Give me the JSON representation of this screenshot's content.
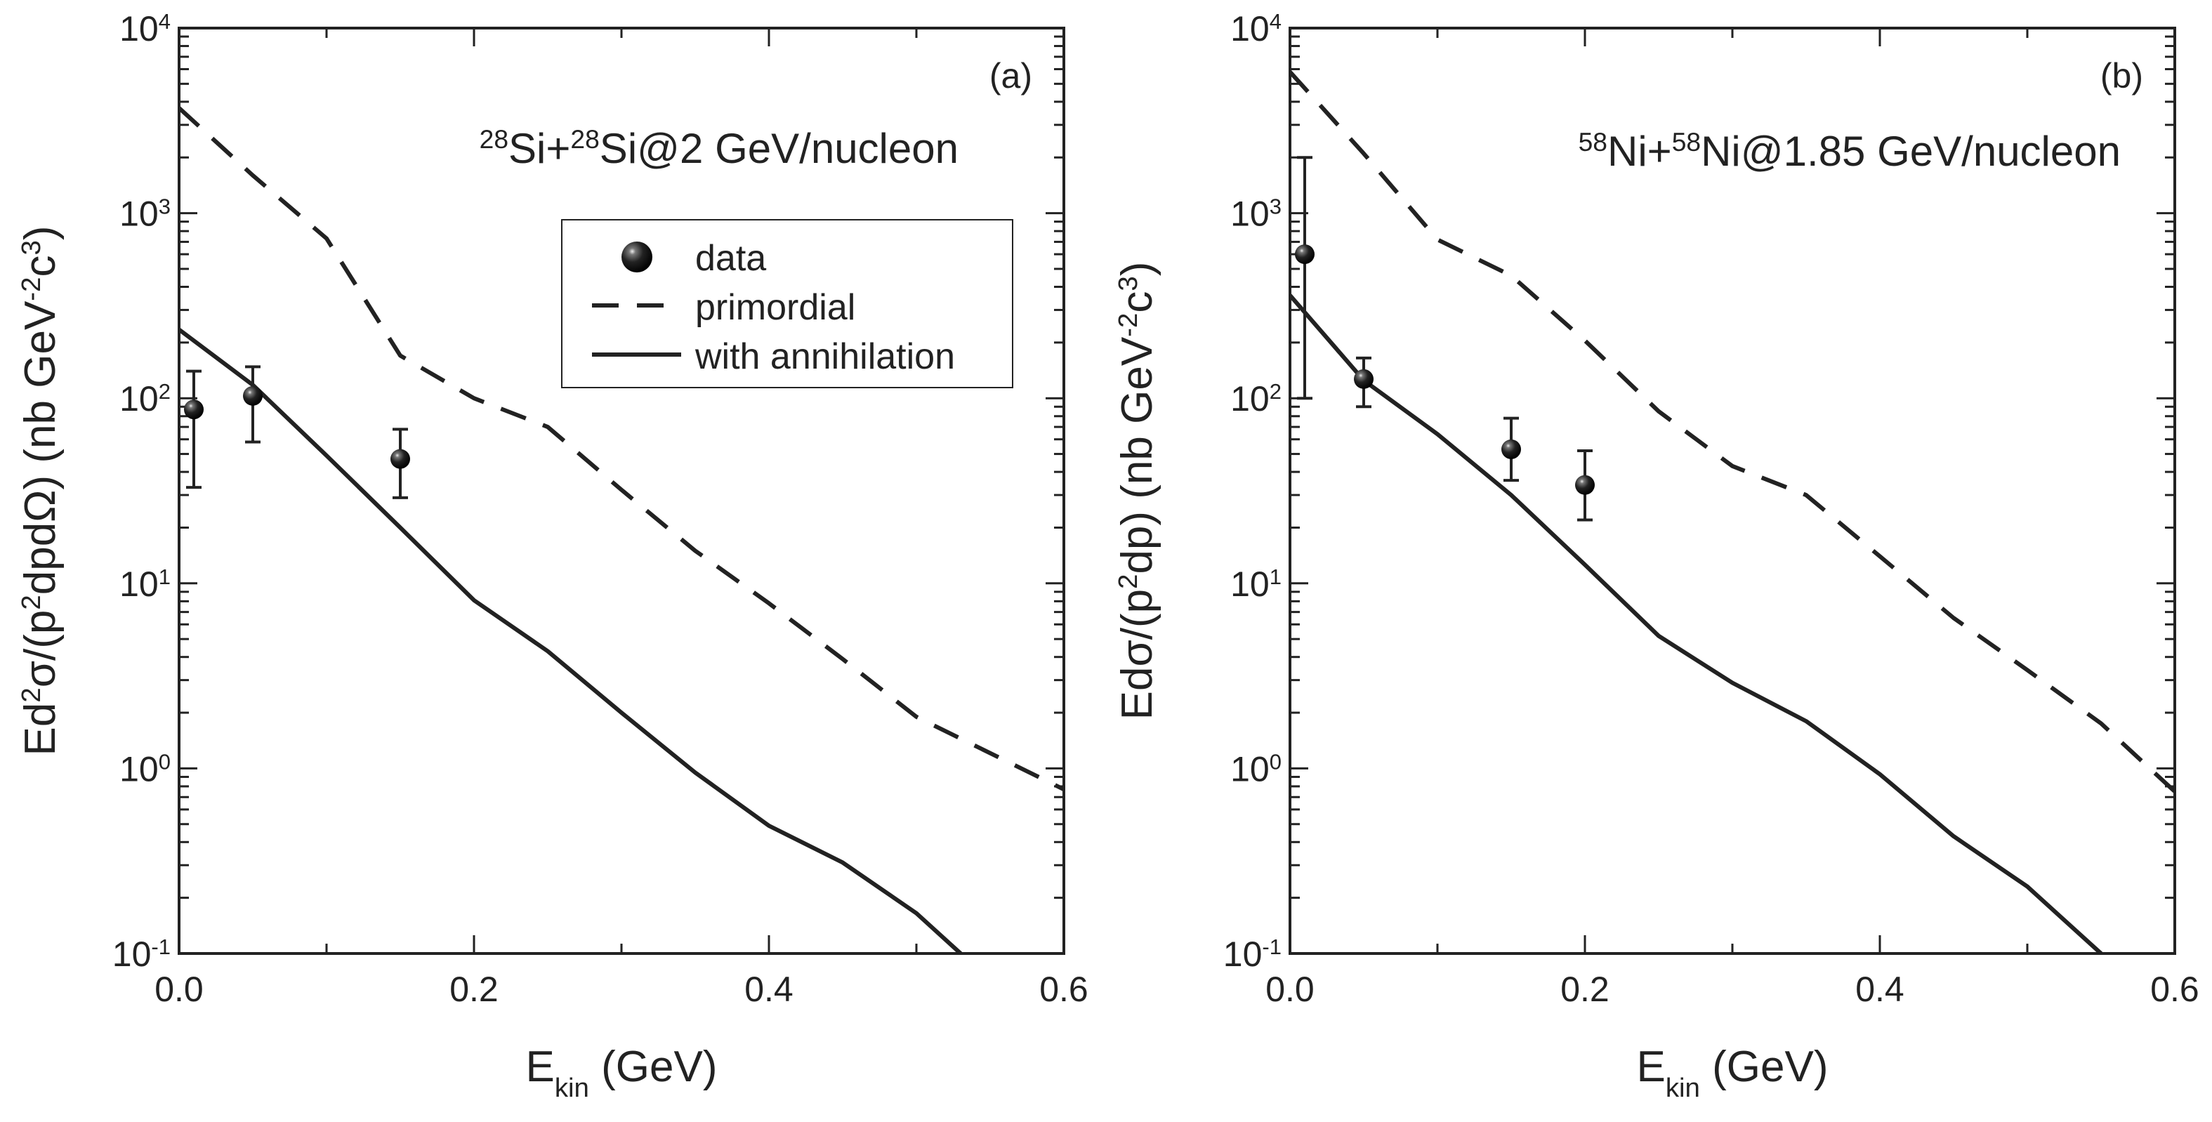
{
  "colors": {
    "line": "#222222",
    "marker": "#1a1a1a",
    "background": "#ffffff"
  },
  "chart_data": [
    {
      "type": "line",
      "panel_label": "(a)",
      "title_parts": [
        [
          "28",
          "sup"
        ],
        [
          "Si+",
          ""
        ],
        [
          "28",
          "sup"
        ],
        [
          "Si@2 GeV/nucleon",
          ""
        ]
      ],
      "xlabel_parts": [
        [
          "E",
          ""
        ],
        [
          "kin",
          "sub"
        ],
        [
          " (GeV)",
          ""
        ]
      ],
      "ylabel_parts": [
        [
          "Ed",
          ""
        ],
        [
          "2",
          "sup"
        ],
        [
          "σ/(p",
          ""
        ],
        [
          "2",
          "sup"
        ],
        [
          "dpdΩ) (nb GeV",
          ""
        ],
        [
          "-2",
          "sup"
        ],
        [
          "c",
          ""
        ],
        [
          "3",
          "sup"
        ],
        [
          ")",
          ""
        ]
      ],
      "xlim": [
        0,
        0.6
      ],
      "ylim": [
        0.1,
        10000
      ],
      "yscale": "log",
      "xticks": [
        "0.0",
        "0.2",
        "0.4",
        "0.6"
      ],
      "yticks": [
        {
          "base": "10",
          "exp": "-1"
        },
        {
          "base": "10",
          "exp": "0"
        },
        {
          "base": "10",
          "exp": "1"
        },
        {
          "base": "10",
          "exp": "2"
        },
        {
          "base": "10",
          "exp": "3"
        },
        {
          "base": "10",
          "exp": "4"
        }
      ],
      "legend": {
        "placement": "upper-right",
        "entries": [
          "data",
          "primordial",
          "with annihilation"
        ]
      },
      "series": [
        {
          "name": "primordial",
          "style": "dashed",
          "x": [
            0,
            0.05,
            0.1,
            0.15,
            0.2,
            0.25,
            0.3,
            0.35,
            0.4,
            0.45,
            0.5,
            0.6
          ],
          "y": [
            3700,
            1600,
            730,
            170,
            100,
            70,
            32,
            15,
            7.8,
            3.9,
            1.9,
            0.77
          ]
        },
        {
          "name": "with annihilation",
          "style": "solid",
          "x": [
            0,
            0.05,
            0.1,
            0.15,
            0.2,
            0.25,
            0.3,
            0.35,
            0.4,
            0.45,
            0.5,
            0.53
          ],
          "y": [
            235,
            118,
            49,
            20,
            8.1,
            4.3,
            2.0,
            0.95,
            0.49,
            0.31,
            0.165,
            0.1
          ]
        },
        {
          "name": "data",
          "style": "markers",
          "x": [
            0.01,
            0.05,
            0.15
          ],
          "y": [
            87,
            103,
            47
          ],
          "y_low": [
            33,
            58,
            29
          ],
          "y_high": [
            140,
            148,
            68
          ]
        }
      ]
    },
    {
      "type": "line",
      "panel_label": "(b)",
      "title_parts": [
        [
          "58",
          "sup"
        ],
        [
          "Ni+",
          ""
        ],
        [
          "58",
          "sup"
        ],
        [
          "Ni@1.85 GeV/nucleon",
          ""
        ]
      ],
      "xlabel_parts": [
        [
          "E",
          ""
        ],
        [
          "kin",
          "sub"
        ],
        [
          " (GeV)",
          ""
        ]
      ],
      "ylabel_parts": [
        [
          "Edσ/(p",
          ""
        ],
        [
          "2",
          "sup"
        ],
        [
          "dp) (nb GeV",
          ""
        ],
        [
          "-2",
          "sup"
        ],
        [
          "c",
          ""
        ],
        [
          "3",
          "sup"
        ],
        [
          ")",
          ""
        ]
      ],
      "xlim": [
        0,
        0.6
      ],
      "ylim": [
        0.1,
        10000
      ],
      "yscale": "log",
      "xticks": [
        "0.0",
        "0.2",
        "0.4",
        "0.6"
      ],
      "yticks": [
        {
          "base": "10",
          "exp": "-1"
        },
        {
          "base": "10",
          "exp": "0"
        },
        {
          "base": "10",
          "exp": "1"
        },
        {
          "base": "10",
          "exp": "2"
        },
        {
          "base": "10",
          "exp": "3"
        },
        {
          "base": "10",
          "exp": "4"
        }
      ],
      "series": [
        {
          "name": "primordial",
          "style": "dashed",
          "x": [
            0,
            0.05,
            0.1,
            0.15,
            0.2,
            0.25,
            0.3,
            0.35,
            0.4,
            0.45,
            0.5,
            0.55,
            0.6
          ],
          "y": [
            5800,
            2100,
            720,
            460,
            205,
            85,
            43,
            30,
            14,
            6.5,
            3.4,
            1.75,
            0.75
          ]
        },
        {
          "name": "with annihilation",
          "style": "solid",
          "x": [
            0,
            0.05,
            0.1,
            0.15,
            0.2,
            0.25,
            0.3,
            0.35,
            0.4,
            0.45,
            0.5,
            0.55
          ],
          "y": [
            360,
            125,
            64,
            30,
            12.6,
            5.2,
            2.9,
            1.8,
            0.93,
            0.43,
            0.23,
            0.1
          ]
        },
        {
          "name": "data",
          "style": "markers",
          "x": [
            0.01,
            0.05,
            0.15,
            0.2
          ],
          "y": [
            600,
            127,
            53,
            34
          ],
          "y_low": [
            100,
            90,
            36,
            22
          ],
          "y_high": [
            2000,
            165,
            78,
            52
          ]
        }
      ]
    }
  ]
}
